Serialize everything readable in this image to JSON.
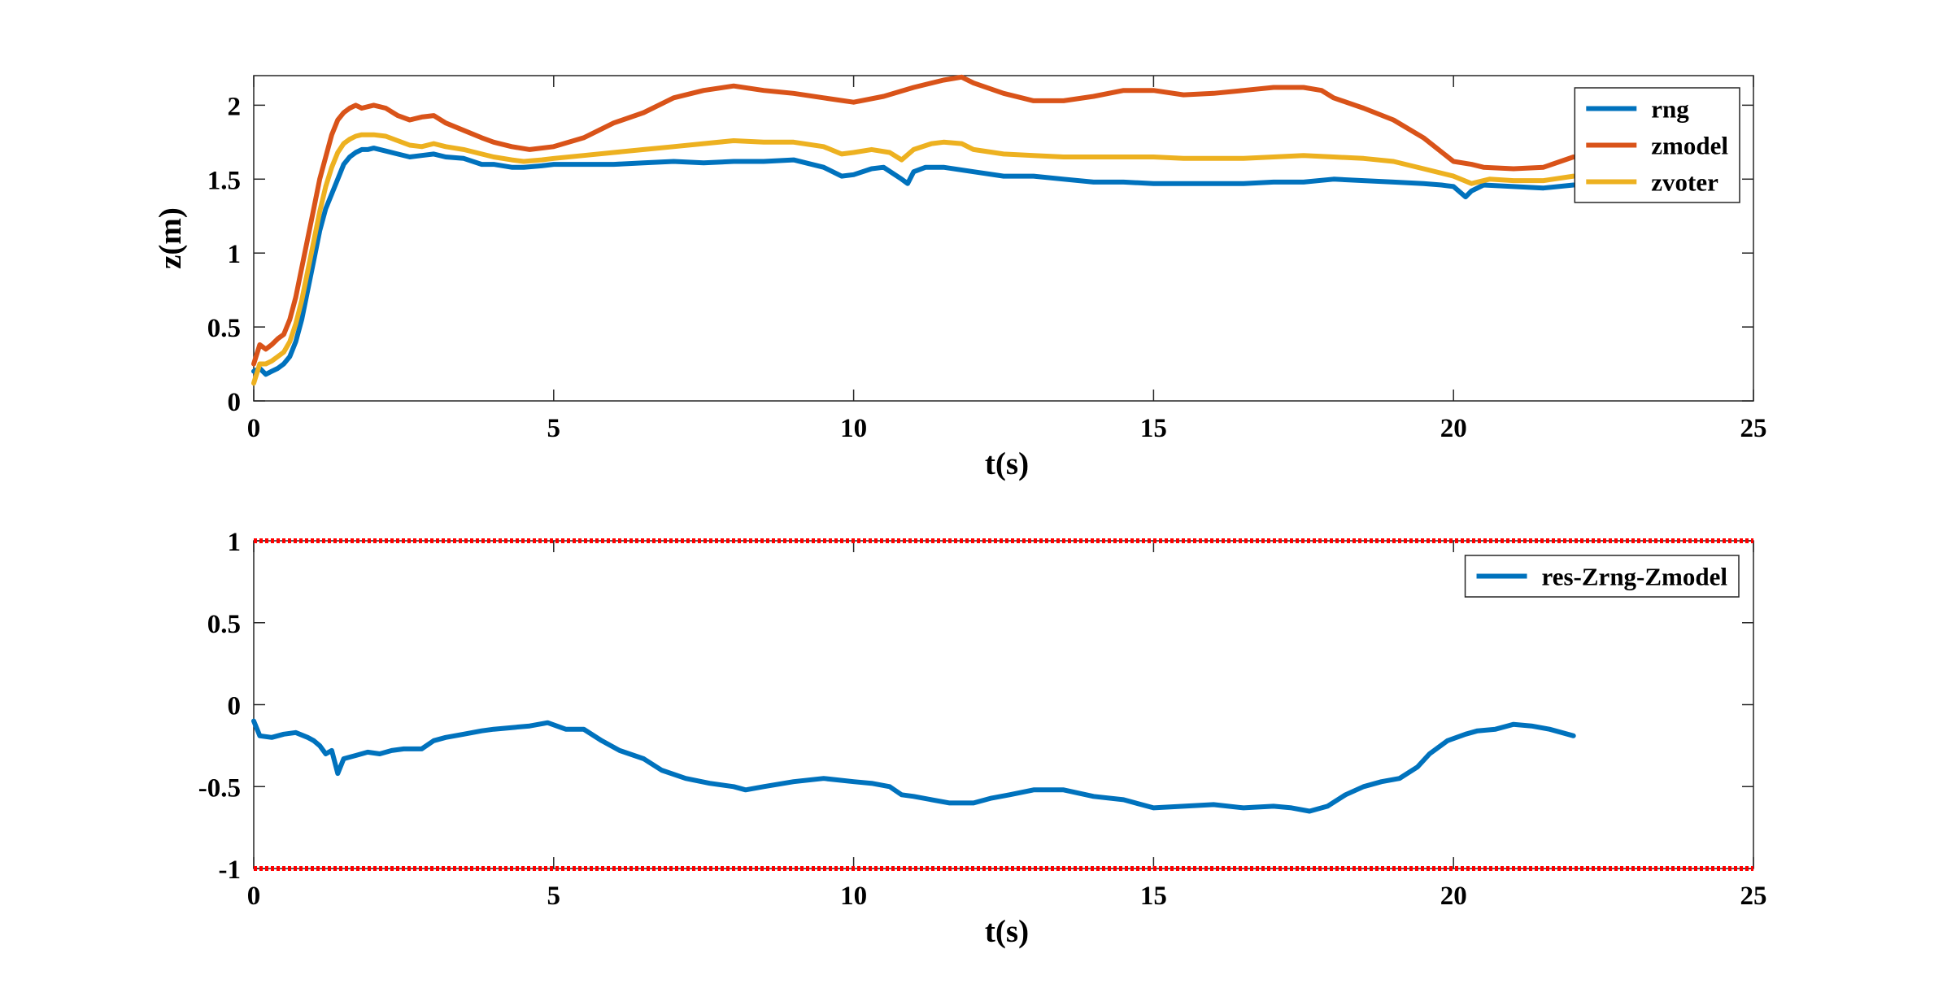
{
  "chart_data": [
    {
      "type": "line",
      "xlabel": "t(s)",
      "ylabel": "z(m)",
      "xlim": [
        0,
        25
      ],
      "ylim": [
        0,
        2.2
      ],
      "xticks": [
        "0",
        "5",
        "10",
        "15",
        "20",
        "25"
      ],
      "yticks": [
        "0",
        "0.5",
        "1",
        "1.5",
        "2"
      ],
      "grid": false,
      "legend": "top-right",
      "series": [
        {
          "name": "rng",
          "color": "#0072BD",
          "x": [
            0,
            0.1,
            0.2,
            0.3,
            0.4,
            0.5,
            0.6,
            0.7,
            0.8,
            0.9,
            1.0,
            1.1,
            1.2,
            1.3,
            1.4,
            1.5,
            1.6,
            1.7,
            1.8,
            1.9,
            2.0,
            2.2,
            2.4,
            2.6,
            2.8,
            3.0,
            3.2,
            3.5,
            3.8,
            4.0,
            4.3,
            4.5,
            4.8,
            5.0,
            5.3,
            5.6,
            6.0,
            6.5,
            7.0,
            7.5,
            8.0,
            8.5,
            9.0,
            9.5,
            9.8,
            10.0,
            10.3,
            10.5,
            10.8,
            10.9,
            11.0,
            11.2,
            11.5,
            12.0,
            12.5,
            13.0,
            13.5,
            14.0,
            14.5,
            15.0,
            15.5,
            16.0,
            16.5,
            17.0,
            17.5,
            18.0,
            18.5,
            19.0,
            19.5,
            19.8,
            20.0,
            20.2,
            20.3,
            20.5,
            21.0,
            21.5,
            22.0
          ],
          "y": [
            0.2,
            0.22,
            0.18,
            0.2,
            0.22,
            0.25,
            0.3,
            0.4,
            0.55,
            0.75,
            0.95,
            1.15,
            1.3,
            1.4,
            1.5,
            1.6,
            1.65,
            1.68,
            1.7,
            1.7,
            1.71,
            1.69,
            1.67,
            1.65,
            1.66,
            1.67,
            1.65,
            1.64,
            1.6,
            1.6,
            1.58,
            1.58,
            1.59,
            1.6,
            1.6,
            1.6,
            1.6,
            1.61,
            1.62,
            1.61,
            1.62,
            1.62,
            1.63,
            1.58,
            1.52,
            1.53,
            1.57,
            1.58,
            1.5,
            1.47,
            1.55,
            1.58,
            1.58,
            1.55,
            1.52,
            1.52,
            1.5,
            1.48,
            1.48,
            1.47,
            1.47,
            1.47,
            1.47,
            1.48,
            1.48,
            1.5,
            1.49,
            1.48,
            1.47,
            1.46,
            1.45,
            1.38,
            1.42,
            1.46,
            1.45,
            1.44,
            1.46
          ]
        },
        {
          "name": "zmodel",
          "color": "#D95319",
          "x": [
            0,
            0.1,
            0.2,
            0.3,
            0.4,
            0.5,
            0.6,
            0.7,
            0.8,
            0.9,
            1.0,
            1.1,
            1.2,
            1.3,
            1.4,
            1.5,
            1.6,
            1.7,
            1.8,
            2.0,
            2.2,
            2.4,
            2.6,
            2.8,
            3.0,
            3.2,
            3.5,
            3.8,
            4.0,
            4.3,
            4.6,
            5.0,
            5.5,
            6.0,
            6.5,
            7.0,
            7.5,
            8.0,
            8.5,
            9.0,
            9.5,
            10.0,
            10.5,
            11.0,
            11.5,
            11.8,
            12.0,
            12.5,
            13.0,
            13.5,
            14.0,
            14.5,
            15.0,
            15.5,
            16.0,
            16.5,
            17.0,
            17.5,
            17.8,
            18.0,
            18.5,
            19.0,
            19.5,
            20.0,
            20.3,
            20.5,
            21.0,
            21.5,
            22.0
          ],
          "y": [
            0.25,
            0.38,
            0.35,
            0.38,
            0.42,
            0.45,
            0.55,
            0.7,
            0.9,
            1.1,
            1.3,
            1.5,
            1.65,
            1.8,
            1.9,
            1.95,
            1.98,
            2.0,
            1.98,
            2.0,
            1.98,
            1.93,
            1.9,
            1.92,
            1.93,
            1.88,
            1.83,
            1.78,
            1.75,
            1.72,
            1.7,
            1.72,
            1.78,
            1.88,
            1.95,
            2.05,
            2.1,
            2.13,
            2.1,
            2.08,
            2.05,
            2.02,
            2.06,
            2.12,
            2.17,
            2.19,
            2.15,
            2.08,
            2.03,
            2.03,
            2.06,
            2.1,
            2.1,
            2.07,
            2.08,
            2.1,
            2.12,
            2.12,
            2.1,
            2.05,
            1.98,
            1.9,
            1.78,
            1.62,
            1.6,
            1.58,
            1.57,
            1.58,
            1.65
          ]
        },
        {
          "name": "zvoter",
          "color": "#EDB120",
          "x": [
            0,
            0.1,
            0.2,
            0.3,
            0.4,
            0.5,
            0.6,
            0.7,
            0.8,
            0.9,
            1.0,
            1.1,
            1.2,
            1.3,
            1.4,
            1.5,
            1.6,
            1.7,
            1.8,
            2.0,
            2.2,
            2.4,
            2.6,
            2.8,
            3.0,
            3.2,
            3.5,
            3.8,
            4.0,
            4.3,
            4.5,
            4.8,
            5.0,
            5.5,
            6.0,
            6.5,
            7.0,
            7.5,
            8.0,
            8.5,
            9.0,
            9.5,
            9.8,
            10.0,
            10.3,
            10.6,
            10.8,
            11.0,
            11.3,
            11.5,
            11.8,
            12.0,
            12.5,
            13.0,
            13.5,
            14.0,
            14.5,
            15.0,
            15.5,
            16.0,
            16.5,
            17.0,
            17.5,
            18.0,
            18.5,
            19.0,
            19.5,
            20.0,
            20.3,
            20.6,
            21.0,
            21.5,
            22.0
          ],
          "y": [
            0.12,
            0.25,
            0.25,
            0.27,
            0.3,
            0.33,
            0.4,
            0.52,
            0.68,
            0.88,
            1.08,
            1.28,
            1.45,
            1.58,
            1.68,
            1.74,
            1.77,
            1.79,
            1.8,
            1.8,
            1.79,
            1.76,
            1.73,
            1.72,
            1.74,
            1.72,
            1.7,
            1.67,
            1.65,
            1.63,
            1.62,
            1.63,
            1.64,
            1.66,
            1.68,
            1.7,
            1.72,
            1.74,
            1.76,
            1.75,
            1.75,
            1.72,
            1.67,
            1.68,
            1.7,
            1.68,
            1.63,
            1.7,
            1.74,
            1.75,
            1.74,
            1.7,
            1.67,
            1.66,
            1.65,
            1.65,
            1.65,
            1.65,
            1.64,
            1.64,
            1.64,
            1.65,
            1.66,
            1.65,
            1.64,
            1.62,
            1.57,
            1.52,
            1.47,
            1.5,
            1.49,
            1.49,
            1.52
          ]
        }
      ]
    },
    {
      "type": "line",
      "xlabel": "t(s)",
      "ylabel": "",
      "xlim": [
        0,
        25
      ],
      "ylim": [
        -1,
        1
      ],
      "xticks": [
        "0",
        "5",
        "10",
        "15",
        "20",
        "25"
      ],
      "yticks": [
        "-1",
        "-0.5",
        "0",
        "0.5",
        "1"
      ],
      "grid": false,
      "legend": "top-right",
      "thresholds": [
        {
          "y": 1,
          "color": "#FF0000",
          "style": "dotted"
        },
        {
          "y": -1,
          "color": "#FF0000",
          "style": "dotted"
        }
      ],
      "series": [
        {
          "name": "res-Zrng-Zmodel",
          "color": "#0072BD",
          "x": [
            0,
            0.1,
            0.3,
            0.5,
            0.7,
            0.9,
            1.0,
            1.1,
            1.2,
            1.3,
            1.4,
            1.5,
            1.7,
            1.9,
            2.1,
            2.3,
            2.5,
            2.8,
            3.0,
            3.2,
            3.5,
            3.8,
            4.0,
            4.3,
            4.6,
            4.9,
            5.2,
            5.5,
            5.8,
            6.1,
            6.5,
            6.8,
            7.2,
            7.6,
            8.0,
            8.2,
            8.5,
            9.0,
            9.5,
            10.0,
            10.3,
            10.6,
            10.8,
            11.0,
            11.3,
            11.6,
            12.0,
            12.3,
            12.6,
            13.0,
            13.5,
            14.0,
            14.5,
            15.0,
            15.5,
            16.0,
            16.5,
            17.0,
            17.3,
            17.6,
            17.9,
            18.2,
            18.5,
            18.8,
            19.1,
            19.4,
            19.6,
            19.9,
            20.2,
            20.4,
            20.7,
            21.0,
            21.3,
            21.6,
            22.0
          ],
          "y": [
            -0.1,
            -0.19,
            -0.2,
            -0.18,
            -0.17,
            -0.2,
            -0.22,
            -0.25,
            -0.3,
            -0.28,
            -0.42,
            -0.33,
            -0.31,
            -0.29,
            -0.3,
            -0.28,
            -0.27,
            -0.27,
            -0.22,
            -0.2,
            -0.18,
            -0.16,
            -0.15,
            -0.14,
            -0.13,
            -0.11,
            -0.15,
            -0.15,
            -0.22,
            -0.28,
            -0.33,
            -0.4,
            -0.45,
            -0.48,
            -0.5,
            -0.52,
            -0.5,
            -0.47,
            -0.45,
            -0.47,
            -0.48,
            -0.5,
            -0.55,
            -0.56,
            -0.58,
            -0.6,
            -0.6,
            -0.57,
            -0.55,
            -0.52,
            -0.52,
            -0.56,
            -0.58,
            -0.63,
            -0.62,
            -0.61,
            -0.63,
            -0.62,
            -0.63,
            -0.65,
            -0.62,
            -0.55,
            -0.5,
            -0.47,
            -0.45,
            -0.38,
            -0.3,
            -0.22,
            -0.18,
            -0.16,
            -0.15,
            -0.12,
            -0.13,
            -0.15,
            -0.19
          ]
        }
      ]
    }
  ]
}
